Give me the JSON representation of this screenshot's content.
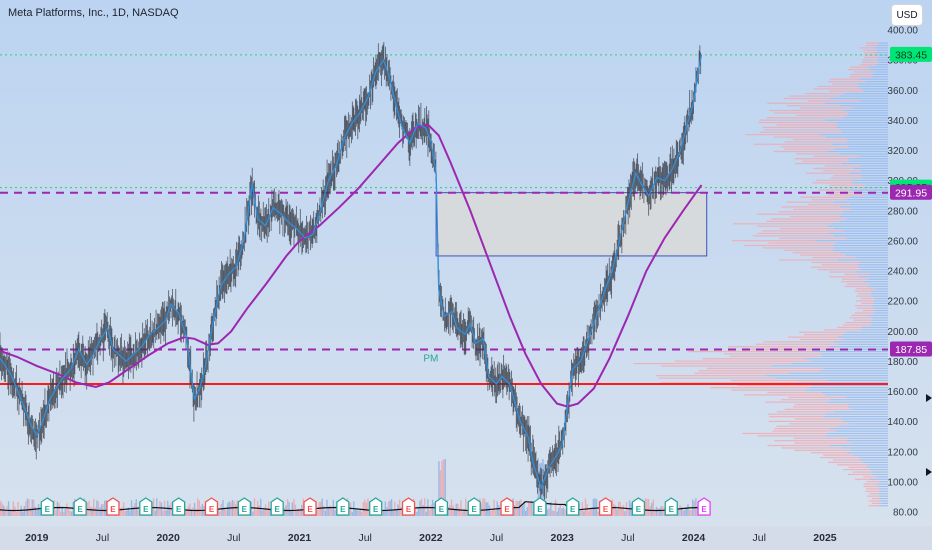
{
  "header": {
    "title": "Meta Platforms, Inc., 1D, NASDAQ",
    "currency_button": "USD"
  },
  "colors": {
    "background_top": "#bcd4f1",
    "background_bottom": "#d8e2ee",
    "price_line": "#2f8fdb",
    "ma_line": "#9c27b0",
    "support_line": "#ff1a1a",
    "resistance_dash": "#9c27b0",
    "last_price_dotted": "#2ecc71",
    "volume_profile_red": "#f7a3a8",
    "volume_profile_blue": "#8fb4ee"
  },
  "chart_data": {
    "type": "line",
    "title": "Meta Platforms, Inc., 1D, NASDAQ",
    "ylim": [
      80,
      400
    ],
    "y_ticks": [
      80,
      100,
      120,
      140,
      160,
      180,
      200,
      220,
      240,
      260,
      280,
      300,
      320,
      340,
      360,
      380,
      400
    ],
    "x_ticks": [
      {
        "label": "2019",
        "t": 2019.0
      },
      {
        "label": "Jul",
        "t": 2019.5
      },
      {
        "label": "2020",
        "t": 2020.0
      },
      {
        "label": "Jul",
        "t": 2020.5
      },
      {
        "label": "2021",
        "t": 2021.0
      },
      {
        "label": "Jul",
        "t": 2021.5
      },
      {
        "label": "2022",
        "t": 2022.0
      },
      {
        "label": "Jul",
        "t": 2022.5
      },
      {
        "label": "2023",
        "t": 2023.0
      },
      {
        "label": "Jul",
        "t": 2023.5
      },
      {
        "label": "2024",
        "t": 2024.0
      },
      {
        "label": "Jul",
        "t": 2024.5
      },
      {
        "label": "2025",
        "t": 2025.0
      }
    ],
    "xlim": [
      2018.72,
      2025.48
    ],
    "series": [
      {
        "role": "close_price",
        "points": [
          [
            2018.72,
            182
          ],
          [
            2018.8,
            172
          ],
          [
            2018.88,
            155
          ],
          [
            2018.96,
            137
          ],
          [
            2019.0,
            131
          ],
          [
            2019.04,
            139
          ],
          [
            2019.1,
            155
          ],
          [
            2019.18,
            167
          ],
          [
            2019.26,
            175
          ],
          [
            2019.32,
            188
          ],
          [
            2019.38,
            178
          ],
          [
            2019.42,
            183
          ],
          [
            2019.48,
            194
          ],
          [
            2019.54,
            202
          ],
          [
            2019.58,
            188
          ],
          [
            2019.62,
            185
          ],
          [
            2019.68,
            180
          ],
          [
            2019.74,
            185
          ],
          [
            2019.8,
            190
          ],
          [
            2019.86,
            198
          ],
          [
            2019.92,
            202
          ],
          [
            2019.98,
            207
          ],
          [
            2020.02,
            218
          ],
          [
            2020.08,
            212
          ],
          [
            2020.14,
            196
          ],
          [
            2020.2,
            155
          ],
          [
            2020.24,
            162
          ],
          [
            2020.28,
            175
          ],
          [
            2020.34,
            205
          ],
          [
            2020.4,
            230
          ],
          [
            2020.46,
            238
          ],
          [
            2020.52,
            243
          ],
          [
            2020.58,
            262
          ],
          [
            2020.64,
            298
          ],
          [
            2020.68,
            275
          ],
          [
            2020.74,
            270
          ],
          [
            2020.8,
            282
          ],
          [
            2020.86,
            278
          ],
          [
            2020.92,
            272
          ],
          [
            2020.98,
            268
          ],
          [
            2021.04,
            262
          ],
          [
            2021.1,
            264
          ],
          [
            2021.16,
            280
          ],
          [
            2021.22,
            300
          ],
          [
            2021.28,
            310
          ],
          [
            2021.34,
            328
          ],
          [
            2021.4,
            338
          ],
          [
            2021.46,
            345
          ],
          [
            2021.52,
            355
          ],
          [
            2021.58,
            372
          ],
          [
            2021.64,
            380
          ],
          [
            2021.68,
            370
          ],
          [
            2021.74,
            348
          ],
          [
            2021.78,
            336
          ],
          [
            2021.84,
            325
          ],
          [
            2021.9,
            338
          ],
          [
            2021.96,
            335
          ],
          [
            2022.0,
            326
          ],
          [
            2022.04,
            305
          ],
          [
            2022.06,
            228
          ],
          [
            2022.1,
            210
          ],
          [
            2022.16,
            213
          ],
          [
            2022.2,
            202
          ],
          [
            2022.26,
            198
          ],
          [
            2022.3,
            205
          ],
          [
            2022.34,
            192
          ],
          [
            2022.4,
            195
          ],
          [
            2022.44,
            170
          ],
          [
            2022.5,
            165
          ],
          [
            2022.54,
            170
          ],
          [
            2022.6,
            165
          ],
          [
            2022.68,
            140
          ],
          [
            2022.74,
            130
          ],
          [
            2022.78,
            112
          ],
          [
            2022.84,
            96
          ],
          [
            2022.9,
            110
          ],
          [
            2022.96,
            118
          ],
          [
            2023.0,
            125
          ],
          [
            2023.04,
            150
          ],
          [
            2023.08,
            175
          ],
          [
            2023.14,
            180
          ],
          [
            2023.2,
            195
          ],
          [
            2023.26,
            210
          ],
          [
            2023.32,
            226
          ],
          [
            2023.38,
            240
          ],
          [
            2023.44,
            262
          ],
          [
            2023.5,
            285
          ],
          [
            2023.56,
            305
          ],
          [
            2023.6,
            298
          ],
          [
            2023.66,
            290
          ],
          [
            2023.72,
            302
          ],
          [
            2023.78,
            300
          ],
          [
            2023.84,
            308
          ],
          [
            2023.9,
            320
          ],
          [
            2023.96,
            340
          ],
          [
            2024.0,
            352
          ],
          [
            2024.04,
            375
          ],
          [
            2024.06,
            383.45
          ]
        ]
      },
      {
        "role": "moving_average",
        "points": [
          [
            2018.72,
            187
          ],
          [
            2018.85,
            183
          ],
          [
            2019.0,
            177
          ],
          [
            2019.15,
            172
          ],
          [
            2019.3,
            166
          ],
          [
            2019.45,
            163
          ],
          [
            2019.55,
            166
          ],
          [
            2019.7,
            175
          ],
          [
            2019.85,
            184
          ],
          [
            2020.0,
            192
          ],
          [
            2020.12,
            196
          ],
          [
            2020.2,
            195
          ],
          [
            2020.3,
            191
          ],
          [
            2020.38,
            192
          ],
          [
            2020.48,
            200
          ],
          [
            2020.6,
            215
          ],
          [
            2020.75,
            232
          ],
          [
            2020.9,
            250
          ],
          [
            2021.0,
            260
          ],
          [
            2021.15,
            270
          ],
          [
            2021.3,
            282
          ],
          [
            2021.45,
            295
          ],
          [
            2021.6,
            310
          ],
          [
            2021.75,
            325
          ],
          [
            2021.88,
            335
          ],
          [
            2021.98,
            337
          ],
          [
            2022.06,
            330
          ],
          [
            2022.15,
            312
          ],
          [
            2022.3,
            280
          ],
          [
            2022.45,
            245
          ],
          [
            2022.6,
            210
          ],
          [
            2022.72,
            185
          ],
          [
            2022.84,
            165
          ],
          [
            2022.96,
            152
          ],
          [
            2023.04,
            150
          ],
          [
            2023.12,
            152
          ],
          [
            2023.24,
            162
          ],
          [
            2023.36,
            182
          ],
          [
            2023.5,
            210
          ],
          [
            2023.64,
            240
          ],
          [
            2023.78,
            262
          ],
          [
            2023.92,
            280
          ],
          [
            2024.06,
            297
          ]
        ]
      }
    ],
    "horizontal_levels": [
      {
        "value": 383.45,
        "label": "383.45",
        "style": "dotted",
        "color": "#2ecc71",
        "label_bg": "#00e676"
      },
      {
        "value": 295.35,
        "label": "295.35",
        "style": "dotted",
        "color": "#2ecc71",
        "label_bg": "#00e676"
      },
      {
        "value": 291.95,
        "label": "291.95",
        "style": "dashed",
        "color": "#9c27b0",
        "label_bg": "#9c27b0"
      },
      {
        "value": 187.85,
        "label": "187.85",
        "style": "dashed",
        "color": "#9c27b0",
        "label_bg": "#9c27b0"
      },
      {
        "value": 165,
        "label": "",
        "style": "solid",
        "color": "#ff1a1a",
        "label_bg": ""
      }
    ],
    "zone": {
      "t_start": 2022.04,
      "t_end": 2024.1,
      "y_low": 250,
      "y_high": 292
    },
    "annotations": [
      {
        "text": "PM",
        "t": 2022.0,
        "value": 180
      }
    ],
    "earnings_markers_t": [
      2019.08,
      2019.33,
      2019.58,
      2019.83,
      2020.08,
      2020.33,
      2020.58,
      2020.83,
      2021.08,
      2021.33,
      2021.58,
      2021.83,
      2022.08,
      2022.33,
      2022.58,
      2022.83,
      2023.08,
      2023.33,
      2023.58,
      2023.83,
      2024.08
    ]
  }
}
